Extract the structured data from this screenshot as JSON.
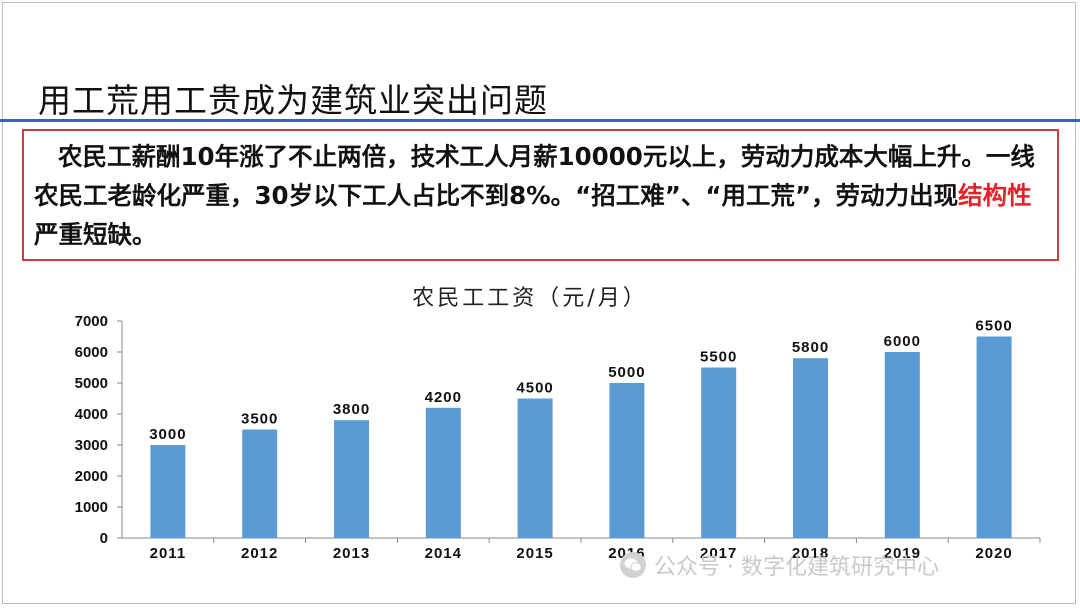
{
  "slide": {
    "title": "用工荒用工贵成为建筑业突出问题"
  },
  "callout": {
    "text_before": "农民工薪酬10年涨了不止两倍，技术工人月薪10000元以上，劳动力成本大幅上升。一线农民工老龄化严重，30岁以下工人占比不到8%。“招工难”、“用工荒”，劳动力出现",
    "highlight": "结构性",
    "text_after": "严重短缺。",
    "highlight_color": "#e0242d"
  },
  "watermark": {
    "text": "公众号 · 数字化建筑研究中心",
    "icon": "wechat-icon"
  },
  "chart_data": {
    "type": "bar",
    "title": "农民工工资（元/月）",
    "categories": [
      "2011",
      "2012",
      "2013",
      "2014",
      "2015",
      "2016",
      "2017",
      "2018",
      "2019",
      "2020"
    ],
    "values": [
      3000,
      3500,
      3800,
      4200,
      4500,
      5000,
      5500,
      5800,
      6000,
      6500
    ],
    "data_labels": [
      "3000",
      "3500",
      "3800",
      "4200",
      "4500",
      "5000",
      "5500",
      "5800",
      "6000",
      "6500"
    ],
    "ylim": [
      0,
      7000
    ],
    "yticks": [
      "0",
      "1000",
      "2000",
      "3000",
      "4000",
      "5000",
      "6000",
      "7000"
    ],
    "xlabel": "",
    "ylabel": "",
    "grid": false,
    "legend": "none",
    "bar_color": "#5b9bd5"
  }
}
